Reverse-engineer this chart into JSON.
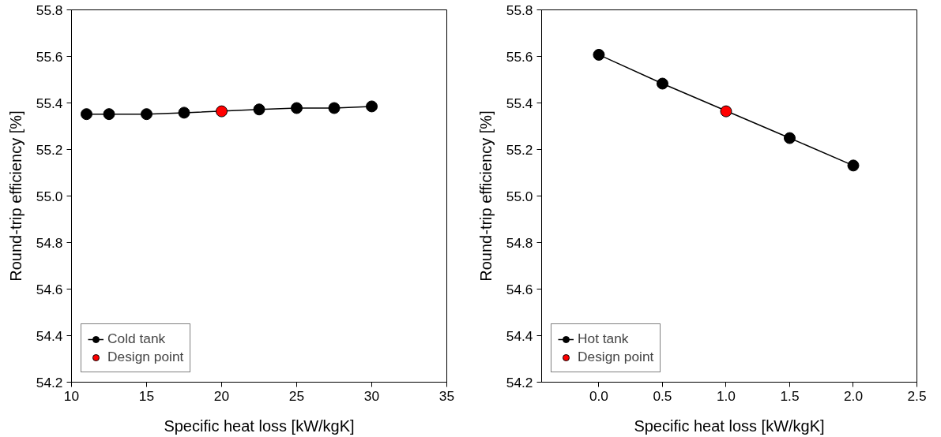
{
  "chart_data": [
    {
      "type": "line",
      "xlabel": "Specific heat loss [kW/kgK]",
      "ylabel": "Round-trip efficiency [%]",
      "xlim": [
        10,
        35
      ],
      "xticks": [
        10,
        15,
        20,
        25,
        30,
        35
      ],
      "ylim": [
        54.2,
        55.8
      ],
      "yticks": [
        54.2,
        54.4,
        54.6,
        54.8,
        {
          "value": 55.0,
          "label": "55.0"
        },
        55.2,
        55.4,
        55.6,
        55.8
      ],
      "grid": false,
      "legend": "bottom left",
      "marker": "circle",
      "line_style": "solid",
      "series": [
        {
          "name": "Cold tank",
          "color": "#000000",
          "x": [
            11,
            12.5,
            15,
            17.5,
            22.5,
            25,
            27.5,
            30
          ],
          "values": [
            55.352,
            55.352,
            55.352,
            55.358,
            55.372,
            55.378,
            55.378,
            55.385
          ]
        },
        {
          "name": "Design point",
          "type": "scatter",
          "color": "#ff0000",
          "x": [
            20
          ],
          "values": [
            55.364
          ]
        }
      ]
    },
    {
      "type": "line",
      "xlabel": "Specific heat loss [kW/kgK]",
      "ylabel": "Round-trip efficiency [%]",
      "xlim": [
        -0.45,
        2.5
      ],
      "xticks": [
        {
          "value": 0.0,
          "label": "0.0"
        },
        0.5,
        {
          "value": 1.0,
          "label": "1.0"
        },
        1.5,
        {
          "value": 2.0,
          "label": "2.0"
        },
        2.5
      ],
      "ylim": [
        54.2,
        55.8
      ],
      "yticks": [
        54.2,
        54.4,
        54.6,
        54.8,
        {
          "value": 55.0,
          "label": "55.0"
        },
        55.2,
        55.4,
        55.6,
        55.8
      ],
      "grid": false,
      "legend": "bottom left",
      "marker": "circle",
      "line_style": "solid",
      "series": [
        {
          "name": "Hot tank",
          "color": "#000000",
          "x": [
            0.0,
            0.5,
            1.5,
            2.0
          ],
          "values": [
            55.607,
            55.483,
            55.249,
            55.131
          ]
        },
        {
          "name": "Design point",
          "type": "scatter",
          "color": "#ff0000",
          "x": [
            1.0
          ],
          "values": [
            55.364
          ]
        }
      ]
    }
  ]
}
